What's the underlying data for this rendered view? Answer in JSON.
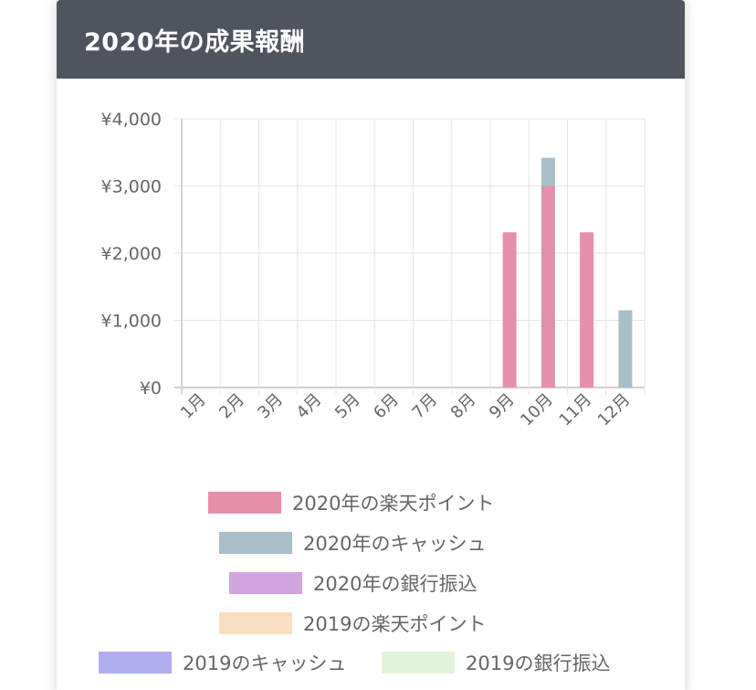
{
  "card": {
    "title": "2020年の成果報酬"
  },
  "chart_data": {
    "type": "bar",
    "stacked": true,
    "categories": [
      "1月",
      "2月",
      "3月",
      "4月",
      "5月",
      "6月",
      "7月",
      "8月",
      "9月",
      "10月",
      "11月",
      "12月"
    ],
    "series": [
      {
        "name": "2020年の楽天ポイント",
        "color": "#e68fab",
        "values": [
          0,
          0,
          0,
          0,
          0,
          0,
          0,
          0,
          2310,
          3000,
          2310,
          0
        ]
      },
      {
        "name": "2020年のキャッシュ",
        "color": "#a9bfca",
        "values": [
          0,
          0,
          0,
          0,
          0,
          0,
          0,
          0,
          0,
          420,
          0,
          1150
        ]
      },
      {
        "name": "2020年の銀行振込",
        "color": "#d1a6de",
        "values": [
          0,
          0,
          0,
          0,
          0,
          0,
          0,
          0,
          0,
          0,
          0,
          0
        ]
      },
      {
        "name": "2019の楽天ポイント",
        "color": "#f8dfc1",
        "values": [
          0,
          0,
          0,
          0,
          0,
          0,
          0,
          0,
          0,
          0,
          0,
          0
        ]
      },
      {
        "name": "2019のキャッシュ",
        "color": "#b1aef0",
        "values": [
          0,
          0,
          0,
          0,
          0,
          0,
          0,
          0,
          0,
          0,
          0,
          0
        ]
      },
      {
        "name": "2019の銀行振込",
        "color": "#e3f5d8",
        "values": [
          0,
          0,
          0,
          0,
          0,
          0,
          0,
          0,
          0,
          0,
          0,
          0
        ]
      }
    ],
    "ylim": [
      0,
      4000
    ],
    "yticks": [
      "¥0",
      "¥1,000",
      "¥2,000",
      "¥3,000",
      "¥4,000"
    ],
    "ytick_values": [
      0,
      1000,
      2000,
      3000,
      4000
    ],
    "grid": true,
    "legend_position": "bottom"
  }
}
